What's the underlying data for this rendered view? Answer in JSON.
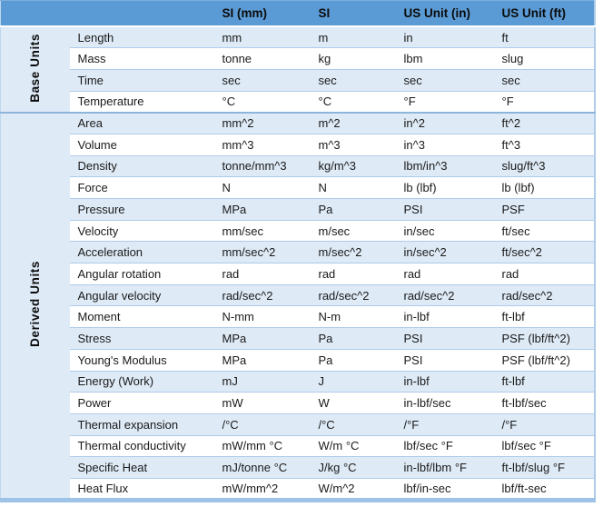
{
  "colors": {
    "header_bg": "#5B9BD5",
    "band_row_bg": "#DEEAF6",
    "row_border": "#AECBEA",
    "section_divider": "#8FB4DC",
    "outer_border": "#9DC3E6",
    "header_text": "#0b0b0b",
    "body_text": "#1a1a1a"
  },
  "table": {
    "columns": [
      "SI (mm)",
      "SI",
      "US Unit (in)",
      "US Unit (ft)"
    ],
    "sections": [
      {
        "label": "Base Units",
        "rows": [
          {
            "name": "Length",
            "values": [
              "mm",
              "m",
              "in",
              "ft"
            ]
          },
          {
            "name": "Mass",
            "values": [
              "tonne",
              "kg",
              "lbm",
              "slug"
            ]
          },
          {
            "name": "Time",
            "values": [
              "sec",
              "sec",
              "sec",
              "sec"
            ]
          },
          {
            "name": "Temperature",
            "values": [
              "°C",
              "°C",
              "°F",
              "°F"
            ]
          }
        ]
      },
      {
        "label": "Derived Units",
        "rows": [
          {
            "name": "Area",
            "values": [
              "mm^2",
              "m^2",
              "in^2",
              "ft^2"
            ]
          },
          {
            "name": "Volume",
            "values": [
              "mm^3",
              "m^3",
              "in^3",
              "ft^3"
            ]
          },
          {
            "name": "Density",
            "values": [
              "tonne/mm^3",
              "kg/m^3",
              "lbm/in^3",
              "slug/ft^3"
            ]
          },
          {
            "name": "Force",
            "values": [
              "N",
              "N",
              "lb (lbf)",
              "lb (lbf)"
            ]
          },
          {
            "name": "Pressure",
            "values": [
              "MPa",
              "Pa",
              "PSI",
              "PSF"
            ]
          },
          {
            "name": "Velocity",
            "values": [
              "mm/sec",
              "m/sec",
              "in/sec",
              "ft/sec"
            ]
          },
          {
            "name": "Acceleration",
            "values": [
              "mm/sec^2",
              "m/sec^2",
              "in/sec^2",
              "ft/sec^2"
            ]
          },
          {
            "name": "Angular rotation",
            "values": [
              "rad",
              "rad",
              "rad",
              "rad"
            ]
          },
          {
            "name": "Angular velocity",
            "values": [
              "rad/sec^2",
              "rad/sec^2",
              "rad/sec^2",
              "rad/sec^2"
            ]
          },
          {
            "name": "Moment",
            "values": [
              "N-mm",
              "N-m",
              "in-lbf",
              "ft-lbf"
            ]
          },
          {
            "name": "Stress",
            "values": [
              "MPa",
              "Pa",
              "PSI",
              "PSF (lbf/ft^2)"
            ]
          },
          {
            "name": "Young's Modulus",
            "values": [
              "MPa",
              "Pa",
              "PSI",
              "PSF (lbf/ft^2)"
            ]
          },
          {
            "name": "Energy (Work)",
            "values": [
              "mJ",
              "J",
              "in-lbf",
              "ft-lbf"
            ]
          },
          {
            "name": "Power",
            "values": [
              "mW",
              "W",
              "in-lbf/sec",
              "ft-lbf/sec"
            ]
          },
          {
            "name": "Thermal expansion",
            "values": [
              "/°C",
              "/°C",
              "/°F",
              "/°F"
            ]
          },
          {
            "name": "Thermal conductivity",
            "values": [
              "mW/mm °C",
              "W/m °C",
              "lbf/sec °F",
              "lbf/sec °F"
            ]
          },
          {
            "name": "Specific Heat",
            "values": [
              "mJ/tonne °C",
              "J/kg °C",
              "in-lbf/lbm °F",
              "ft-lbf/slug °F"
            ]
          },
          {
            "name": "Heat Flux",
            "values": [
              "mW/mm^2",
              "W/m^2",
              "lbf/in-sec",
              "lbf/ft-sec"
            ]
          }
        ]
      }
    ]
  }
}
